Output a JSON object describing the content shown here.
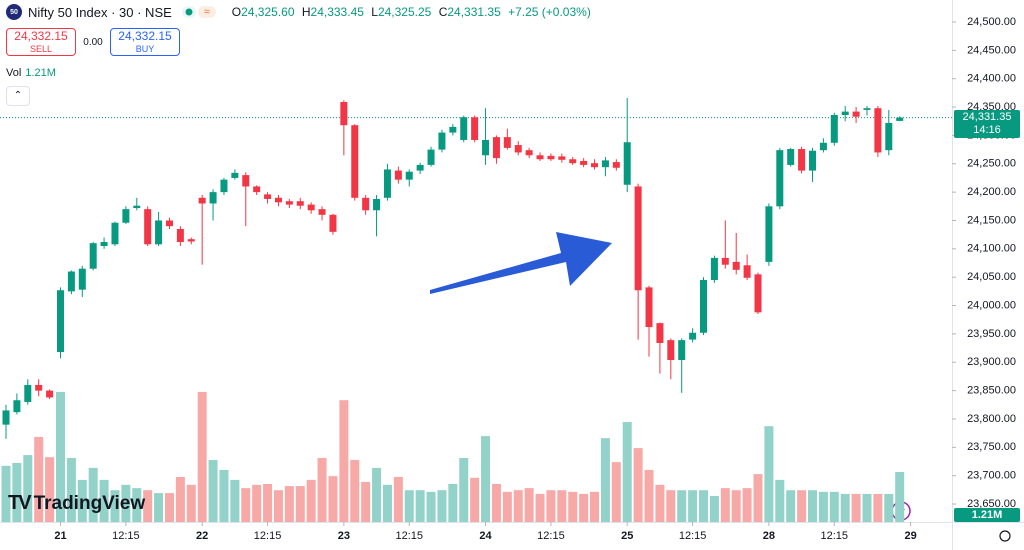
{
  "header": {
    "symbol_icon": "50",
    "symbol": "Nifty 50 Index · 30 · NSE",
    "o_label": "O",
    "open": "24,325.60",
    "h_label": "H",
    "high": "24,333.45",
    "l_label": "L",
    "low": "24,325.25",
    "c_label": "C",
    "close": "24,331.35",
    "change": "+7.25 (+0.03%)",
    "sell_price": "24,332.15",
    "sell_label": "SELL",
    "spread": "0.00",
    "buy_price": "24,332.15",
    "buy_label": "BUY",
    "vol_label": "Vol",
    "last_price_time": "14:16",
    "logo": "TradingView"
  },
  "chart_data": {
    "type": "candlestick",
    "up_color": "#089981",
    "down_color": "#f23645",
    "volume_up_color": "#92d2c8",
    "volume_down_color": "#f7a9a7",
    "open": [
      23790,
      23812,
      23830,
      23860,
      23850,
      23918,
      24025,
      24028,
      24065,
      24105,
      24108,
      24146,
      24172,
      24170,
      24108,
      24150,
      24135,
      24117,
      24190,
      24180,
      24200,
      24225,
      24230,
      24210,
      24196,
      24190,
      24184,
      24184,
      24178,
      24170,
      24160,
      24359,
      24318,
      24190,
      24168,
      24190,
      24238,
      24222,
      24238,
      24248,
      24275,
      24305,
      24292,
      24332,
      24265,
      24297,
      24297,
      24283,
      24274,
      24265,
      24264,
      24263,
      24258,
      24255,
      24251,
      24244,
      24253,
      24213,
      24210,
      24032,
      23969,
      23939,
      23904,
      23940,
      23952,
      24045,
      24084,
      24077,
      24071,
      24055,
      24077,
      24175,
      24248,
      24276,
      24238,
      24274,
      24287,
      24336,
      24342,
      24345,
      24348,
      24274,
      24325.6
    ],
    "high": [
      23825,
      23845,
      23870,
      23870,
      23852,
      24032,
      24062,
      24070,
      24112,
      24120,
      24148,
      24175,
      24190,
      24175,
      24165,
      24155,
      24140,
      24120,
      24195,
      24205,
      24225,
      24240,
      24235,
      24212,
      24200,
      24195,
      24188,
      24190,
      24182,
      24175,
      24162,
      24362,
      24320,
      24195,
      24195,
      24250,
      24245,
      24240,
      24252,
      24280,
      24310,
      24320,
      24335,
      24335,
      24348,
      24300,
      24312,
      24290,
      24278,
      24270,
      24268,
      24268,
      24262,
      24260,
      24258,
      24262,
      24258,
      24366,
      24215,
      24035,
      23970,
      23942,
      23942,
      23960,
      24050,
      24088,
      24150,
      24128,
      24090,
      24058,
      24180,
      24278,
      24278,
      24280,
      24278,
      24295,
      24340,
      24352,
      24350,
      24352,
      24352,
      24345,
      24333.45
    ],
    "low": [
      23765,
      23808,
      23825,
      23840,
      23835,
      23907,
      24020,
      24015,
      24062,
      24100,
      24105,
      24144,
      24168,
      24105,
      24105,
      24135,
      24105,
      24108,
      24072,
      24150,
      24195,
      24222,
      24140,
      24195,
      24180,
      24175,
      24172,
      24170,
      24162,
      24150,
      24125,
      24265,
      24185,
      24160,
      24122,
      24185,
      24215,
      24210,
      24232,
      24245,
      24270,
      24300,
      24288,
      24288,
      24248,
      24250,
      24275,
      24265,
      24260,
      24255,
      24255,
      24252,
      24248,
      24244,
      24240,
      24228,
      24238,
      24200,
      23940,
      23910,
      23880,
      23870,
      23846,
      23935,
      23948,
      24040,
      24065,
      24055,
      24045,
      23985,
      24070,
      24170,
      24245,
      24233,
      24218,
      24270,
      24282,
      24325,
      24322,
      24335,
      24262,
      24265,
      24325.25
    ],
    "close": [
      23815,
      23833,
      23860,
      23850,
      23838,
      24027,
      24060,
      24065,
      24110,
      24112,
      24146,
      24170,
      24176,
      24108,
      24150,
      24140,
      24112,
      24113,
      24180,
      24200,
      24222,
      24234,
      24210,
      24200,
      24188,
      24182,
      24178,
      24176,
      24168,
      24160,
      24130,
      24318,
      24190,
      24168,
      24188,
      24240,
      24222,
      24236,
      24248,
      24275,
      24305,
      24315,
      24332,
      24292,
      24292,
      24260,
      24278,
      24270,
      24265,
      24258,
      24258,
      24257,
      24251,
      24248,
      24244,
      24256,
      24243,
      24288,
      24027,
      23962,
      23934,
      23904,
      23939,
      23952,
      24045,
      24084,
      24072,
      24063,
      24049,
      23988,
      24175,
      24274,
      24276,
      24238,
      24273,
      24287,
      24336,
      24342,
      24333,
      24348,
      24270,
      24322,
      24331.35
    ],
    "volume": [
      1.36,
      1.43,
      1.62,
      2.06,
      1.57,
      3.15,
      1.55,
      1.02,
      1.31,
      1.02,
      0.77,
      0.9,
      0.82,
      0.77,
      0.7,
      0.7,
      1.09,
      0.9,
      3.15,
      1.5,
      1.26,
      1.02,
      0.82,
      0.9,
      0.92,
      0.77,
      0.87,
      0.87,
      1.02,
      1.55,
      1.11,
      2.95,
      1.5,
      0.97,
      1.31,
      0.9,
      1.09,
      0.77,
      0.77,
      0.73,
      0.77,
      0.92,
      1.55,
      1.07,
      2.08,
      0.92,
      0.73,
      0.77,
      0.82,
      0.68,
      0.77,
      0.77,
      0.73,
      0.68,
      0.73,
      2.03,
      1.45,
      2.42,
      1.79,
      1.26,
      0.9,
      0.77,
      0.77,
      0.77,
      0.77,
      0.63,
      0.82,
      0.77,
      0.82,
      1.16,
      2.32,
      1.02,
      0.77,
      0.77,
      0.77,
      0.73,
      0.73,
      0.68,
      0.68,
      0.68,
      0.68,
      0.68,
      1.21
    ],
    "last_volume_label": "1.21M",
    "last_price": {
      "value": 24331.35,
      "label": "24,331.35"
    },
    "xlim": [
      -0.55,
      86.8
    ],
    "xticks": [
      {
        "value": 5,
        "label": "21"
      },
      {
        "value": 11,
        "label": "12:15"
      },
      {
        "value": 18,
        "label": "22"
      },
      {
        "value": 24,
        "label": "12:15"
      },
      {
        "value": 31,
        "label": "23"
      },
      {
        "value": 37,
        "label": "12:15"
      },
      {
        "value": 44,
        "label": "24"
      },
      {
        "value": 50,
        "label": "12:15"
      },
      {
        "value": 57,
        "label": "25"
      },
      {
        "value": 63,
        "label": "12:15"
      },
      {
        "value": 70,
        "label": "28"
      },
      {
        "value": 76,
        "label": "12:15"
      },
      {
        "value": 83,
        "label": "29"
      }
    ],
    "ylim": [
      23618.3,
      24538.8
    ],
    "yticks": [
      {
        "value": 23650,
        "label": "23,650.00"
      },
      {
        "value": 23700,
        "label": "23,700.00"
      },
      {
        "value": 23750,
        "label": "23,750.00"
      },
      {
        "value": 23800,
        "label": "23,800.00"
      },
      {
        "value": 23850,
        "label": "23,850.00"
      },
      {
        "value": 23900,
        "label": "23,900.00"
      },
      {
        "value": 23950,
        "label": "23,950.00"
      },
      {
        "value": 24000,
        "label": "24,000.00"
      },
      {
        "value": 24050,
        "label": "24,050.00"
      },
      {
        "value": 24100,
        "label": "24,100.00"
      },
      {
        "value": 24150,
        "label": "24,150.00"
      },
      {
        "value": 24200,
        "label": "24,200.00"
      },
      {
        "value": 24250,
        "label": "24,250.00"
      },
      {
        "value": 24300,
        "label": "24,300.00"
      },
      {
        "value": 24350,
        "label": "24,350.00"
      },
      {
        "value": 24400,
        "label": "24,400.00"
      },
      {
        "value": 24450,
        "label": "24,450.00"
      },
      {
        "value": 24500,
        "label": "24,500.00"
      }
    ],
    "grid": false
  }
}
